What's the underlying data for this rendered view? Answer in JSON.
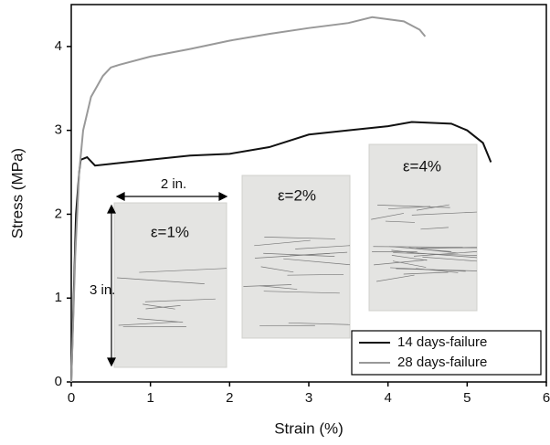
{
  "chart_data": {
    "type": "line",
    "xlabel": "Strain (%)",
    "ylabel": "Stress (MPa)",
    "xlim": [
      0,
      6
    ],
    "ylim": [
      0,
      4.5
    ],
    "xticks": [
      0,
      1,
      2,
      3,
      4,
      5,
      6
    ],
    "yticks": [
      0,
      1,
      2,
      3,
      4
    ],
    "legend": "lower right",
    "series": [
      {
        "name": "14 days-failure",
        "color": "#111111",
        "x": [
          0,
          0.03,
          0.06,
          0.1,
          0.12,
          0.2,
          0.3,
          0.5,
          1,
          1.5,
          2,
          2.5,
          3,
          3.5,
          4,
          4.3,
          4.8,
          5.0,
          5.2,
          5.3
        ],
        "values": [
          0,
          1.0,
          2.0,
          2.5,
          2.65,
          2.68,
          2.58,
          2.6,
          2.65,
          2.7,
          2.72,
          2.8,
          2.95,
          3.0,
          3.05,
          3.1,
          3.08,
          3.0,
          2.85,
          2.62
        ]
      },
      {
        "name": "28 days-failure",
        "color": "#999999",
        "x": [
          0,
          0.05,
          0.1,
          0.15,
          0.25,
          0.4,
          0.5,
          0.6,
          1,
          1.5,
          2,
          2.5,
          3,
          3.5,
          3.8,
          4.2,
          4.4,
          4.47
        ],
        "values": [
          0,
          1.5,
          2.5,
          3.0,
          3.4,
          3.65,
          3.75,
          3.78,
          3.88,
          3.97,
          4.07,
          4.15,
          4.22,
          4.28,
          4.35,
          4.3,
          4.2,
          4.12
        ]
      }
    ],
    "annotations": [
      "2 in.",
      "3 in.",
      "ε=1%",
      "ε=2%",
      "ε=4%"
    ]
  }
}
